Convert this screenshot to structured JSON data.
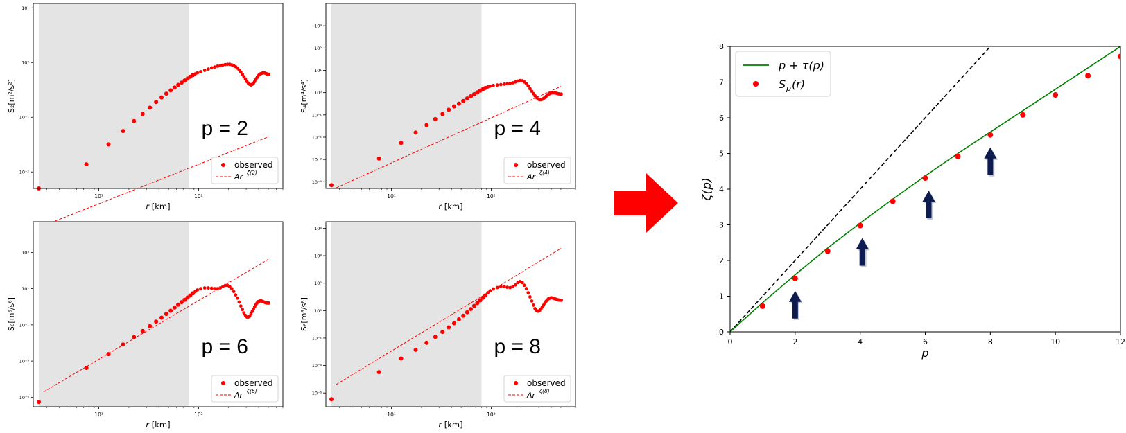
{
  "chart_data": [
    {
      "type": "scatter",
      "panel": "p2",
      "annotation": "p = 2",
      "xlabel_prefix": "r",
      "xlabel_unit": " [km]",
      "ylabel": "S₂[m²/s²]",
      "xscale": "log",
      "yscale": "log",
      "xlim": [
        2.2,
        700
      ],
      "ylim": [
        0.005,
        12
      ],
      "x_ticks": [
        {
          "v": 10,
          "label": "10¹"
        },
        {
          "v": 100,
          "label": "10²"
        }
      ],
      "y_ticks": [
        {
          "v": 0.01,
          "label": "10⁻²"
        },
        {
          "v": 0.1,
          "label": "10⁻¹"
        },
        {
          "v": 1,
          "label": "10⁰"
        },
        {
          "v": 10,
          "label": "10¹"
        }
      ],
      "shaded_x": [
        2.5,
        80
      ],
      "fit": {
        "a": 0.0005,
        "b": 0.72
      },
      "fit_range": [
        2.8,
        500
      ],
      "points": [
        [
          2.5,
          0.0036
        ],
        [
          7.5,
          0.0138
        ],
        [
          12.5,
          0.032
        ],
        [
          17.5,
          0.056
        ],
        [
          22.5,
          0.085
        ],
        [
          27.5,
          0.115
        ],
        [
          32.5,
          0.15
        ],
        [
          37.5,
          0.19
        ],
        [
          42.5,
          0.23
        ],
        [
          47.5,
          0.27
        ],
        [
          52.5,
          0.31
        ],
        [
          57.5,
          0.35
        ],
        [
          62.5,
          0.39
        ],
        [
          67.5,
          0.43
        ],
        [
          72.5,
          0.47
        ],
        [
          77.5,
          0.51
        ],
        [
          82.5,
          0.55
        ],
        [
          87.5,
          0.59
        ],
        [
          92.5,
          0.62
        ],
        [
          97.5,
          0.65
        ],
        [
          105,
          0.68
        ],
        [
          115,
          0.72
        ],
        [
          125,
          0.76
        ],
        [
          135,
          0.8
        ],
        [
          145,
          0.83
        ],
        [
          155,
          0.86
        ],
        [
          165,
          0.88
        ],
        [
          175,
          0.9
        ],
        [
          185,
          0.92
        ],
        [
          195,
          0.93
        ],
        [
          205,
          0.93
        ],
        [
          215,
          0.91
        ],
        [
          225,
          0.88
        ],
        [
          235,
          0.84
        ],
        [
          245,
          0.79
        ],
        [
          255,
          0.73
        ],
        [
          265,
          0.67
        ],
        [
          275,
          0.61
        ],
        [
          285,
          0.55
        ],
        [
          295,
          0.5
        ],
        [
          305,
          0.45
        ],
        [
          315,
          0.42
        ],
        [
          325,
          0.4
        ],
        [
          335,
          0.39
        ],
        [
          345,
          0.4
        ],
        [
          355,
          0.42
        ],
        [
          365,
          0.45
        ],
        [
          375,
          0.49
        ],
        [
          385,
          0.53
        ],
        [
          395,
          0.57
        ],
        [
          405,
          0.6
        ],
        [
          415,
          0.62
        ],
        [
          425,
          0.63
        ],
        [
          435,
          0.64
        ],
        [
          445,
          0.65
        ],
        [
          455,
          0.65
        ],
        [
          465,
          0.64
        ],
        [
          475,
          0.63
        ],
        [
          485,
          0.62
        ],
        [
          495,
          0.61
        ],
        [
          505,
          0.61
        ]
      ],
      "legend": [
        "observed",
        "Ar",
        "ζ(2)"
      ]
    },
    {
      "type": "scatter",
      "panel": "p4",
      "annotation": "p = 4",
      "xlabel_prefix": "r",
      "xlabel_unit": " [km]",
      "ylabel": "S₄[m⁴/s⁴]",
      "xscale": "log",
      "yscale": "log",
      "xlim": [
        2.2,
        700
      ],
      "ylim": [
        5e-05,
        10000
      ],
      "x_ticks": [
        {
          "v": 10,
          "label": "10¹"
        },
        {
          "v": 100,
          "label": "10²"
        }
      ],
      "y_ticks": [
        {
          "v": 0.0001,
          "label": "10⁻⁴"
        },
        {
          "v": 0.001,
          "label": "10⁻³"
        },
        {
          "v": 0.01,
          "label": "10⁻²"
        },
        {
          "v": 0.1,
          "label": "10⁻¹"
        },
        {
          "v": 1,
          "label": "10⁰"
        },
        {
          "v": 10,
          "label": "10¹"
        },
        {
          "v": 100,
          "label": "10²"
        },
        {
          "v": 1000,
          "label": "10³"
        }
      ],
      "shaded_x": [
        2.5,
        80
      ],
      "fit": {
        "a": 6.7e-06,
        "b": 2.02
      },
      "fit_range": [
        2.8,
        500
      ],
      "points": [
        [
          2.5,
          7e-05
        ],
        [
          7.5,
          0.0011
        ],
        [
          12.5,
          0.0055
        ],
        [
          17.5,
          0.016
        ],
        [
          22.5,
          0.035
        ],
        [
          27.5,
          0.065
        ],
        [
          32.5,
          0.11
        ],
        [
          37.5,
          0.17
        ],
        [
          42.5,
          0.24
        ],
        [
          47.5,
          0.32
        ],
        [
          52.5,
          0.42
        ],
        [
          57.5,
          0.55
        ],
        [
          62.5,
          0.69
        ],
        [
          67.5,
          0.85
        ],
        [
          72.5,
          1.02
        ],
        [
          77.5,
          1.22
        ],
        [
          82.5,
          1.42
        ],
        [
          87.5,
          1.62
        ],
        [
          92.5,
          1.8
        ],
        [
          97.5,
          1.95
        ],
        [
          105,
          2.1
        ],
        [
          115,
          2.2
        ],
        [
          125,
          2.3
        ],
        [
          135,
          2.4
        ],
        [
          145,
          2.5
        ],
        [
          155,
          2.6
        ],
        [
          165,
          2.75
        ],
        [
          175,
          3.0
        ],
        [
          185,
          3.3
        ],
        [
          195,
          3.5
        ],
        [
          205,
          3.4
        ],
        [
          215,
          3.0
        ],
        [
          225,
          2.5
        ],
        [
          235,
          2.0
        ],
        [
          245,
          1.5
        ],
        [
          255,
          1.15
        ],
        [
          265,
          0.9
        ],
        [
          275,
          0.72
        ],
        [
          285,
          0.6
        ],
        [
          295,
          0.52
        ],
        [
          305,
          0.48
        ],
        [
          315,
          0.48
        ],
        [
          325,
          0.5
        ],
        [
          335,
          0.55
        ],
        [
          345,
          0.6
        ],
        [
          355,
          0.68
        ],
        [
          365,
          0.76
        ],
        [
          375,
          0.83
        ],
        [
          385,
          0.9
        ],
        [
          395,
          0.95
        ],
        [
          405,
          0.97
        ],
        [
          415,
          0.98
        ],
        [
          425,
          0.98
        ],
        [
          435,
          0.97
        ],
        [
          445,
          0.95
        ],
        [
          455,
          0.93
        ],
        [
          465,
          0.9
        ],
        [
          475,
          0.88
        ],
        [
          485,
          0.87
        ],
        [
          495,
          0.86
        ],
        [
          505,
          0.86
        ]
      ],
      "legend": [
        "observed",
        "Ar",
        "ζ(4)"
      ]
    },
    {
      "type": "scatter",
      "panel": "p6",
      "annotation": "p = 6",
      "xlabel_prefix": "r",
      "xlabel_unit": " [km]",
      "ylabel": "S₆[m⁶/s⁶]",
      "xscale": "log",
      "yscale": "log",
      "xlim": [
        2.2,
        700
      ],
      "ylim": [
        3e-06,
        50000
      ],
      "x_ticks": [
        {
          "v": 10,
          "label": "10¹"
        },
        {
          "v": 100,
          "label": "10²"
        }
      ],
      "y_ticks": [
        {
          "v": 1e-05,
          "label": "10⁻⁵"
        },
        {
          "v": 0.001,
          "label": "10⁻³"
        },
        {
          "v": 0.1,
          "label": "10⁻¹"
        },
        {
          "v": 10,
          "label": "10¹"
        },
        {
          "v": 1000,
          "label": "10³"
        }
      ],
      "shaded_x": [
        2.5,
        80
      ],
      "fit": {
        "a": 7e-07,
        "b": 3.25
      },
      "fit_range": [
        2.8,
        500
      ],
      "points": [
        [
          2.5,
          5.5e-06
        ],
        [
          7.5,
          0.00042
        ],
        [
          12.5,
          0.0024
        ],
        [
          17.5,
          0.0082
        ],
        [
          22.5,
          0.021
        ],
        [
          27.5,
          0.045
        ],
        [
          32.5,
          0.085
        ],
        [
          37.5,
          0.15
        ],
        [
          42.5,
          0.25
        ],
        [
          47.5,
          0.4
        ],
        [
          52.5,
          0.6
        ],
        [
          57.5,
          0.9
        ],
        [
          62.5,
          1.3
        ],
        [
          67.5,
          1.8
        ],
        [
          72.5,
          2.4
        ],
        [
          77.5,
          3.2
        ],
        [
          82.5,
          4.2
        ],
        [
          87.5,
          5.5
        ],
        [
          92.5,
          7.0
        ],
        [
          97.5,
          8.5
        ],
        [
          105,
          10
        ],
        [
          115,
          11
        ],
        [
          125,
          11
        ],
        [
          135,
          10.5
        ],
        [
          145,
          10
        ],
        [
          155,
          10
        ],
        [
          165,
          11
        ],
        [
          175,
          13
        ],
        [
          185,
          15
        ],
        [
          195,
          15
        ],
        [
          205,
          13
        ],
        [
          215,
          10
        ],
        [
          225,
          7
        ],
        [
          235,
          4.5
        ],
        [
          245,
          3
        ],
        [
          255,
          1.8
        ],
        [
          265,
          1.1
        ],
        [
          275,
          0.7
        ],
        [
          285,
          0.45
        ],
        [
          295,
          0.33
        ],
        [
          305,
          0.27
        ],
        [
          315,
          0.27
        ],
        [
          325,
          0.3
        ],
        [
          335,
          0.4
        ],
        [
          345,
          0.55
        ],
        [
          355,
          0.75
        ],
        [
          365,
          1.0
        ],
        [
          375,
          1.3
        ],
        [
          385,
          1.6
        ],
        [
          395,
          1.9
        ],
        [
          405,
          2.0
        ],
        [
          415,
          2.1
        ],
        [
          425,
          2.1
        ],
        [
          435,
          2.0
        ],
        [
          445,
          1.9
        ],
        [
          455,
          1.8
        ],
        [
          465,
          1.7
        ],
        [
          475,
          1.65
        ],
        [
          485,
          1.6
        ],
        [
          495,
          1.6
        ],
        [
          505,
          1.6
        ]
      ],
      "legend": [
        "observed",
        "Ar",
        "ζ(6)"
      ]
    },
    {
      "type": "scatter",
      "panel": "p8",
      "annotation": "p = 8",
      "xlabel_prefix": "r",
      "xlabel_unit": " [km]",
      "ylabel": "S₈[m⁸/s⁸]",
      "xscale": "log",
      "yscale": "log",
      "xlim": [
        2.2,
        700
      ],
      "ylim": [
        1e-07,
        3000000
      ],
      "x_ticks": [
        {
          "v": 10,
          "label": "10¹"
        },
        {
          "v": 100,
          "label": "10²"
        }
      ],
      "y_ticks": [
        {
          "v": 1e-06,
          "label": "10⁻⁶"
        },
        {
          "v": 0.0001,
          "label": "10⁻⁴"
        },
        {
          "v": 0.01,
          "label": "10⁻²"
        },
        {
          "v": 1,
          "label": "10⁰"
        },
        {
          "v": 100,
          "label": "10²"
        },
        {
          "v": 10000,
          "label": "10⁴"
        },
        {
          "v": 1000000,
          "label": "10⁶"
        }
      ],
      "shaded_x": [
        2.5,
        80
      ],
      "fit": {
        "a": 4.5e-08,
        "b": 4.4
      },
      "fit_range": [
        2.8,
        500
      ],
      "points": [
        [
          2.5,
          3.5e-07
        ],
        [
          7.5,
          3.3e-05
        ],
        [
          12.5,
          0.00032
        ],
        [
          17.5,
          0.0014
        ],
        [
          22.5,
          0.0045
        ],
        [
          27.5,
          0.012
        ],
        [
          32.5,
          0.028
        ],
        [
          37.5,
          0.06
        ],
        [
          42.5,
          0.12
        ],
        [
          47.5,
          0.23
        ],
        [
          52.5,
          0.42
        ],
        [
          57.5,
          0.75
        ],
        [
          62.5,
          1.3
        ],
        [
          67.5,
          2.2
        ],
        [
          72.5,
          3.5
        ],
        [
          77.5,
          5.5
        ],
        [
          82.5,
          8.5
        ],
        [
          87.5,
          13
        ],
        [
          92.5,
          20
        ],
        [
          97.5,
          28
        ],
        [
          105,
          38
        ],
        [
          115,
          48
        ],
        [
          125,
          55
        ],
        [
          135,
          55
        ],
        [
          145,
          50
        ],
        [
          155,
          48
        ],
        [
          165,
          55
        ],
        [
          175,
          75
        ],
        [
          185,
          110
        ],
        [
          195,
          130
        ],
        [
          205,
          110
        ],
        [
          215,
          70
        ],
        [
          225,
          40
        ],
        [
          235,
          20
        ],
        [
          245,
          10
        ],
        [
          255,
          5
        ],
        [
          265,
          2.5
        ],
        [
          275,
          1.4
        ],
        [
          285,
          1.0
        ],
        [
          295,
          0.9
        ],
        [
          305,
          1.0
        ],
        [
          315,
          1.3
        ],
        [
          325,
          1.8
        ],
        [
          335,
          2.5
        ],
        [
          345,
          3.5
        ],
        [
          355,
          4.8
        ],
        [
          365,
          6.0
        ],
        [
          375,
          7.2
        ],
        [
          385,
          8.0
        ],
        [
          395,
          8.5
        ],
        [
          405,
          8.5
        ],
        [
          415,
          8.2
        ],
        [
          425,
          7.8
        ],
        [
          435,
          7.3
        ],
        [
          445,
          6.8
        ],
        [
          455,
          6.4
        ],
        [
          465,
          6.1
        ],
        [
          475,
          5.9
        ],
        [
          485,
          5.8
        ],
        [
          495,
          5.7
        ],
        [
          505,
          5.7
        ]
      ],
      "legend": [
        "observed",
        "Ar",
        "ζ(8)"
      ]
    },
    {
      "type": "line",
      "panel": "zeta",
      "xlabel": "p",
      "ylabel": "ζ(p)",
      "xlim": [
        0,
        12
      ],
      "ylim": [
        0,
        8
      ],
      "x_ticks": [
        0,
        2,
        4,
        6,
        8,
        10,
        12
      ],
      "y_ticks": [
        0,
        1,
        2,
        3,
        4,
        5,
        6,
        7,
        8
      ],
      "series": [
        {
          "name": "p + τ(p)",
          "type": "line",
          "color": "#008000",
          "x": [
            0,
            1,
            2,
            3,
            4,
            5,
            6,
            7,
            8,
            9,
            10,
            11,
            12
          ],
          "y": [
            0,
            0.82,
            1.6,
            2.35,
            3.05,
            3.72,
            4.37,
            5.0,
            5.6,
            6.2,
            6.8,
            7.4,
            8.0
          ]
        },
        {
          "name": "S_p(r)",
          "type": "scatter",
          "color": "#ff0000",
          "x": [
            1,
            2,
            3,
            4,
            5,
            6,
            7,
            8,
            9,
            10,
            11,
            12
          ],
          "y": [
            0.72,
            1.5,
            2.26,
            2.98,
            3.66,
            4.31,
            4.92,
            5.52,
            6.08,
            6.64,
            7.18,
            7.72
          ]
        }
      ],
      "reference_line": {
        "x": [
          0,
          9
        ],
        "y": [
          0,
          9
        ],
        "style": "dashed",
        "color": "#000000"
      },
      "arrows_at_p": [
        2,
        4,
        6,
        8
      ],
      "legend": {
        "placement": "top-left",
        "entries": [
          "p + τ(p)",
          "S",
          "p",
          "(r)"
        ]
      }
    }
  ],
  "colors": {
    "observed": "#ff0000",
    "fit": "#ff0000",
    "shading": "#e4e4e4",
    "model": "#008000",
    "arrow": "#0d1b4f",
    "big_arrow": "#ff0000"
  },
  "icons": {
    "big_arrow": "right-arrow-icon",
    "markers": "up-arrow-icon"
  }
}
